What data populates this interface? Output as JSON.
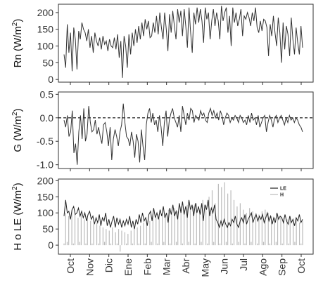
{
  "chart_data": [
    {
      "type": "line",
      "ylabel": "Rn (W/m2)",
      "ylabel_main": "Rn (W/m",
      "ylabel_sup": "2",
      "ylabel_end": ")",
      "ylim": [
        -8,
        225
      ],
      "yticks": [
        0,
        50,
        100,
        150,
        200
      ],
      "ytick_labels": [
        "0",
        "50",
        "100",
        "150",
        "200"
      ],
      "series": [
        {
          "color": "#333333",
          "values": [
            75,
            35,
            165,
            80,
            140,
            25,
            155,
            120,
            30,
            145,
            120,
            170,
            150,
            140,
            115,
            150,
            95,
            130,
            80,
            140,
            115,
            100,
            125,
            90,
            130,
            105,
            115,
            85,
            120,
            100,
            95,
            125,
            90,
            135,
            65,
            115,
            5,
            130,
            100,
            35,
            135,
            75,
            140,
            100,
            150,
            110,
            160,
            120,
            170,
            130,
            180,
            150,
            175,
            125,
            130,
            170,
            140,
            190,
            135,
            200,
            155,
            120,
            200,
            150,
            85,
            195,
            140,
            205,
            160,
            120,
            210,
            170,
            205,
            130,
            210,
            160,
            95,
            215,
            140,
            80,
            200,
            165,
            215,
            170,
            210,
            175,
            110,
            215,
            180,
            200,
            120,
            175,
            210,
            160,
            200,
            175,
            120,
            220,
            175,
            200,
            215,
            140,
            190,
            100,
            215,
            170,
            200,
            160,
            180,
            210,
            130,
            190,
            180,
            200,
            185,
            160,
            200,
            175,
            215,
            155,
            140,
            175,
            145,
            180,
            175,
            155,
            70,
            165,
            130,
            190,
            140,
            100,
            185,
            140,
            50,
            170,
            90,
            160,
            135,
            70,
            185,
            120,
            75,
            155,
            110,
            75,
            160,
            95
          ]
        }
      ]
    },
    {
      "type": "line",
      "ylabel": "G (W/m2)",
      "ylabel_main": "G (W/m",
      "ylabel_sup": "2",
      "ylabel_end": ")",
      "ylim": [
        -1.08,
        0.55
      ],
      "yticks": [
        -1.0,
        -0.5,
        0.0,
        0.5
      ],
      "ytick_labels": [
        "-1.0",
        "-0.5",
        "0.0",
        "0.5"
      ],
      "reference_line": 0.0,
      "series": [
        {
          "color": "#333333",
          "values": [
            -0.05,
            -0.2,
            0.05,
            -0.4,
            -0.3,
            0.15,
            -0.75,
            -0.55,
            -1.0,
            -0.3,
            0.05,
            -0.45,
            0.2,
            -0.5,
            -0.35,
            0.25,
            -0.1,
            -0.3,
            -0.25,
            -0.05,
            -0.35,
            -0.2,
            -0.4,
            -0.55,
            -0.15,
            -0.1,
            -0.3,
            -0.6,
            -0.2,
            -0.9,
            -0.45,
            -0.25,
            -0.4,
            -0.6,
            -0.3,
            -0.15,
            0.3,
            -0.1,
            -0.4,
            -0.45,
            -0.6,
            -0.3,
            -0.5,
            -0.85,
            -0.35,
            -0.5,
            -0.95,
            -0.25,
            -0.6,
            -0.9,
            -0.15,
            0.1,
            0.2,
            -0.1,
            0.1,
            -0.15,
            -0.05,
            -0.3,
            0.05,
            -0.2,
            -0.6,
            -0.1,
            0.15,
            -0.4,
            -0.05,
            0.1,
            0.2,
            0.0,
            -0.1,
            -0.2,
            0.05,
            -0.3,
            0.25,
            0.05,
            -0.15,
            0.1,
            -0.05,
            0.2,
            0.15,
            -0.1,
            0.05,
            0.0,
            -0.05,
            0.15,
            0.05,
            0.1,
            -0.05,
            -0.1,
            0.1,
            0.2,
            0.05,
            0.15,
            0.0,
            0.1,
            -0.05,
            0.15,
            0.05,
            -0.15,
            0.0,
            0.1,
            0.05,
            -0.1,
            0.0,
            -0.05,
            0.05,
            0.0,
            -0.1,
            0.05,
            0.0,
            -0.1,
            -0.05,
            -0.15,
            0.05,
            -0.1,
            0.1,
            -0.05,
            0.0,
            -0.15,
            0.05,
            -0.2,
            -0.1,
            0.0,
            0.05,
            -0.3,
            -0.1,
            0.05,
            -0.05,
            -0.2,
            0.0,
            0.05,
            -0.1,
            0.0,
            0.05,
            -0.05,
            -0.15,
            0.0,
            -0.1,
            0.05,
            -0.05,
            0.0,
            -0.1,
            0.0,
            -0.05,
            -0.15,
            -0.2,
            -0.3
          ]
        }
      ]
    },
    {
      "type": "line",
      "ylabel": "H o LE (W/m2)",
      "ylabel_main": "H o LE (W/m",
      "ylabel_sup": "2",
      "ylabel_end": ")",
      "ylim": [
        -28,
        205
      ],
      "yticks": [
        0,
        50,
        100,
        150,
        200
      ],
      "ytick_labels": [
        "0",
        "50",
        "100",
        "150",
        "200"
      ],
      "xtick_labels": [
        "Oct",
        "Nov",
        "Dic",
        "Ene",
        "Feb",
        "Mar",
        "Abr",
        "May",
        "Jun",
        "Jul",
        "Ago",
        "Sep",
        "Oct"
      ],
      "legend_position": "top-right",
      "series": [
        {
          "name": "LE",
          "color": "#222222",
          "values": [
            90,
            140,
            100,
            105,
            80,
            110,
            120,
            95,
            100,
            115,
            90,
            105,
            85,
            100,
            75,
            95,
            105,
            80,
            90,
            65,
            85,
            70,
            95,
            60,
            85,
            75,
            100,
            60,
            80,
            55,
            75,
            90,
            55,
            85,
            65,
            80,
            55,
            75,
            60,
            80,
            65,
            90,
            55,
            75,
            50,
            80,
            65,
            95,
            70,
            100,
            75,
            85,
            60,
            95,
            105,
            75,
            115,
            85,
            100,
            80,
            110,
            90,
            120,
            85,
            100,
            70,
            115,
            95,
            125,
            90,
            105,
            80,
            130,
            100,
            135,
            95,
            120,
            85,
            140,
            110,
            125,
            90,
            130,
            100,
            120,
            95,
            130,
            75,
            125,
            110,
            140,
            90,
            115,
            100,
            125,
            80,
            70,
            55,
            75,
            60,
            80,
            65,
            55,
            70,
            60,
            80,
            70,
            90,
            65,
            55,
            75,
            85,
            70,
            95,
            65,
            80,
            90,
            100,
            70,
            85,
            95,
            75,
            90,
            80,
            95,
            70,
            85,
            100,
            75,
            90,
            65,
            85,
            70,
            100,
            80,
            90,
            85,
            70,
            95,
            75,
            65,
            90,
            70,
            80,
            60,
            85,
            75,
            95,
            70,
            80
          ]
        },
        {
          "name": "H",
          "color": "#bbbbbb",
          "values": [
            5,
            100,
            10,
            90,
            0,
            110,
            5,
            95,
            0,
            85,
            10,
            100,
            0,
            80,
            5,
            90,
            0,
            75,
            5,
            65,
            0,
            70,
            5,
            60,
            0,
            55,
            10,
            50,
            0,
            45,
            5,
            55,
            0,
            40,
            5,
            50,
            -20,
            45,
            0,
            40,
            5,
            35,
            0,
            45,
            5,
            50,
            0,
            55,
            5,
            60,
            0,
            70,
            5,
            80,
            0,
            75,
            10,
            90,
            0,
            85,
            5,
            95,
            0,
            100,
            10,
            90,
            0,
            110,
            5,
            100,
            0,
            115,
            10,
            105,
            0,
            120,
            5,
            110,
            0,
            125,
            10,
            115,
            0,
            120,
            5,
            130,
            0,
            110,
            10,
            140,
            0,
            125,
            5,
            150,
            0,
            170,
            10,
            130,
            0,
            190,
            5,
            180,
            0,
            195,
            10,
            160,
            0,
            170,
            5,
            140,
            0,
            120,
            10,
            130,
            0,
            110,
            5,
            100,
            0,
            115,
            10,
            105,
            0,
            100,
            5,
            95,
            0,
            105,
            10,
            110,
            0,
            100,
            5,
            90,
            0,
            85,
            10,
            95,
            0,
            90,
            5,
            85,
            0,
            80,
            5,
            90,
            0,
            75,
            10,
            85,
            0,
            70,
            5,
            75
          ]
        }
      ]
    }
  ]
}
